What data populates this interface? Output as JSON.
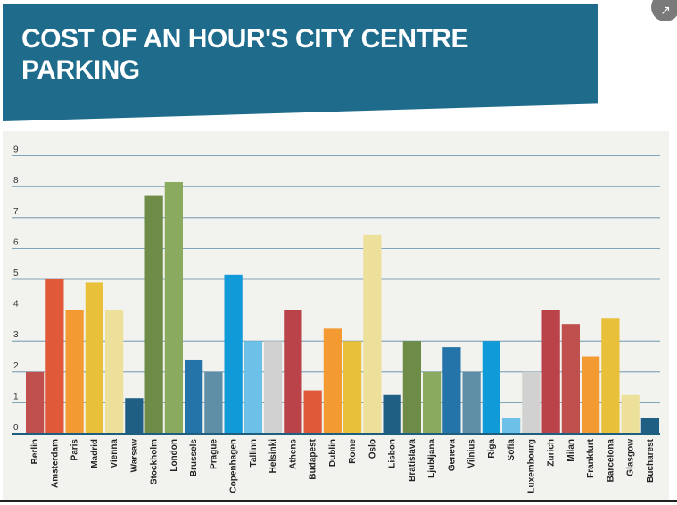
{
  "title": "COST OF AN HOUR'S CITY CENTRE PARKING",
  "share_icon": "share-icon",
  "chart_data": {
    "type": "bar",
    "title": "COST OF AN HOUR'S CITY CENTRE PARKING",
    "xlabel": "",
    "ylabel": "",
    "ylim": [
      0,
      9
    ],
    "yticks": [
      0,
      1,
      2,
      3,
      4,
      5,
      6,
      7,
      8,
      9
    ],
    "grid": true,
    "categories": [
      "Berlin",
      "Amsterdam",
      "Paris",
      "Madrid",
      "Vienna",
      "Warsaw",
      "Stockholm",
      "London",
      "Brussels",
      "Prague",
      "Copenhagen",
      "Tallinn",
      "Helsinki",
      "Athens",
      "Budapest",
      "Dublin",
      "Rome",
      "Oslo",
      "Lisbon",
      "Bratislava",
      "Ljubljana",
      "Geneva",
      "Vilnius",
      "Riga",
      "Sofia",
      "Luxembourg",
      "Zurich",
      "Milan",
      "Frankfurt",
      "Barcelona",
      "Glasgow",
      "Bucharest"
    ],
    "values": [
      2,
      5,
      4,
      4.9,
      4,
      1.15,
      7.7,
      8.15,
      2.4,
      2,
      5.15,
      3,
      3,
      4,
      1.4,
      3.4,
      3,
      6.45,
      1.25,
      3,
      2,
      2.8,
      2,
      3,
      0.5,
      2,
      4,
      3.55,
      2.5,
      3.75,
      1.25,
      0.5
    ],
    "colors": [
      "#c0504d",
      "#e05a3a",
      "#f39a32",
      "#e8c03a",
      "#ede09a",
      "#1f5f84",
      "#6e8c47",
      "#8aab5f",
      "#2474a9",
      "#5f8fa7",
      "#119ad8",
      "#6dc0e8",
      "#d1d1d1",
      "#b94348",
      "#e05a3a",
      "#f39a32",
      "#e8c03a",
      "#ede09a",
      "#1f5f84",
      "#6e8c47",
      "#8aab5f",
      "#2474a9",
      "#5f8fa7",
      "#119ad8",
      "#6dc0e8",
      "#d1d1d1",
      "#b94348",
      "#c0504d",
      "#f39a32",
      "#e8c03a",
      "#ede09a",
      "#1f5f84"
    ]
  }
}
